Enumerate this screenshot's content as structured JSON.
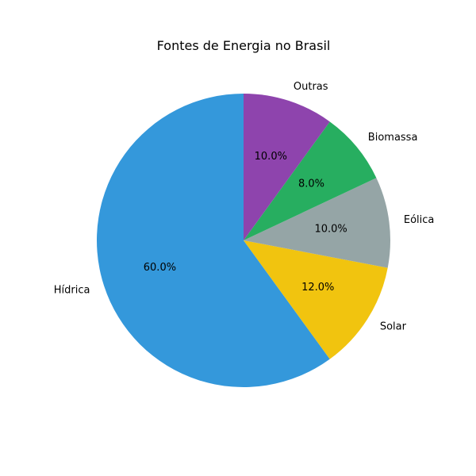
{
  "chart_data": {
    "type": "pie",
    "title": "Fontes de Energia no Brasil",
    "categories": [
      "Hídrica",
      "Solar",
      "Eólica",
      "Biomassa",
      "Outras"
    ],
    "values": [
      60.0,
      12.0,
      10.0,
      8.0,
      10.0
    ],
    "percent_labels": [
      "60.0%",
      "12.0%",
      "10.0%",
      "8.0%",
      "10.0%"
    ],
    "colors": [
      "#3498db",
      "#f1c40f",
      "#95a5a6",
      "#27ae60",
      "#8e44ad"
    ],
    "start_angle_deg": 90,
    "direction": "counterclockwise",
    "legend": "none"
  }
}
